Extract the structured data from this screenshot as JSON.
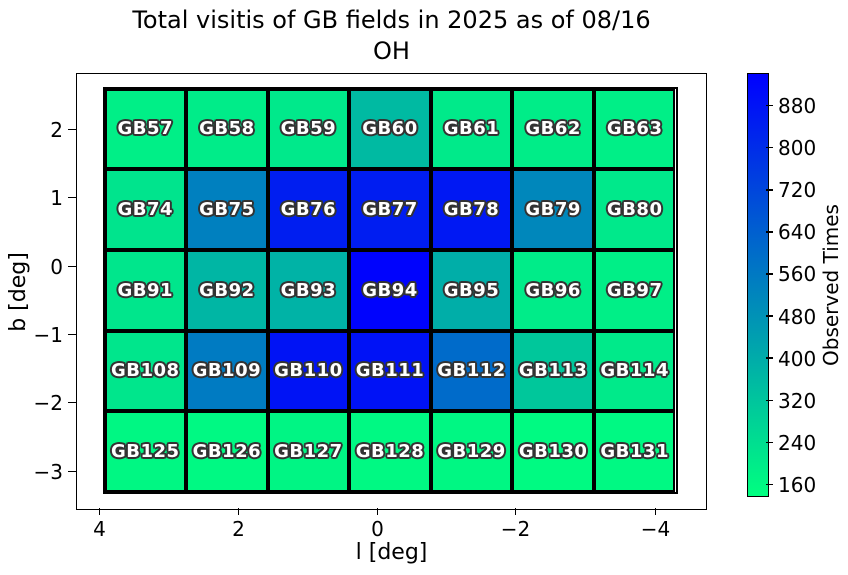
{
  "chart_data": {
    "type": "heatmap",
    "title_line1": "Total visitis of GB fields in 2025 as of 08/16",
    "title_line2": "OH",
    "xlabel": "l [deg]",
    "ylabel": "b [deg]",
    "x_tick_labels": [
      "4",
      "2",
      "0",
      "−2",
      "−4"
    ],
    "y_tick_labels": [
      "2",
      "1",
      "0",
      "−1",
      "−2",
      "−3"
    ],
    "x_axis_inverted": true,
    "grid_on": false,
    "colormap": "winter_r",
    "vmin": 140,
    "vmax": 940,
    "color_low": "#00ff80",
    "color_high": "#0000ff",
    "cell_text_color": "#ffffff",
    "cell_outline_color": "#333333",
    "colorbar_label": "Observed Times",
    "colorbar_ticks": [
      880,
      800,
      720,
      640,
      560,
      480,
      400,
      320,
      240,
      160
    ],
    "grid": {
      "n_rows": 5,
      "n_cols": 7,
      "rows": [
        {
          "b_center": 2,
          "fields": [
            "GB57",
            "GB58",
            "GB59",
            "GB60",
            "GB61",
            "GB62",
            "GB63"
          ],
          "values": [
            190,
            200,
            210,
            355,
            205,
            195,
            190
          ]
        },
        {
          "b_center": 1,
          "fields": [
            "GB74",
            "GB75",
            "GB76",
            "GB77",
            "GB78",
            "GB79",
            "GB80"
          ],
          "values": [
            225,
            540,
            845,
            850,
            865,
            515,
            210
          ]
        },
        {
          "b_center": 0,
          "fields": [
            "GB91",
            "GB92",
            "GB93",
            "GB94",
            "GB95",
            "GB96",
            "GB97"
          ],
          "values": [
            220,
            370,
            380,
            930,
            395,
            200,
            190
          ]
        },
        {
          "b_center": -1.5,
          "fields": [
            "GB108",
            "GB109",
            "GB110",
            "GB111",
            "GB112",
            "GB113",
            "GB114"
          ],
          "values": [
            220,
            555,
            880,
            885,
            605,
            315,
            205
          ]
        },
        {
          "b_center": -3,
          "fields": [
            "GB125",
            "GB126",
            "GB127",
            "GB128",
            "GB129",
            "GB130",
            "GB131"
          ],
          "values": [
            165,
            160,
            170,
            160,
            165,
            155,
            160
          ]
        }
      ]
    }
  }
}
